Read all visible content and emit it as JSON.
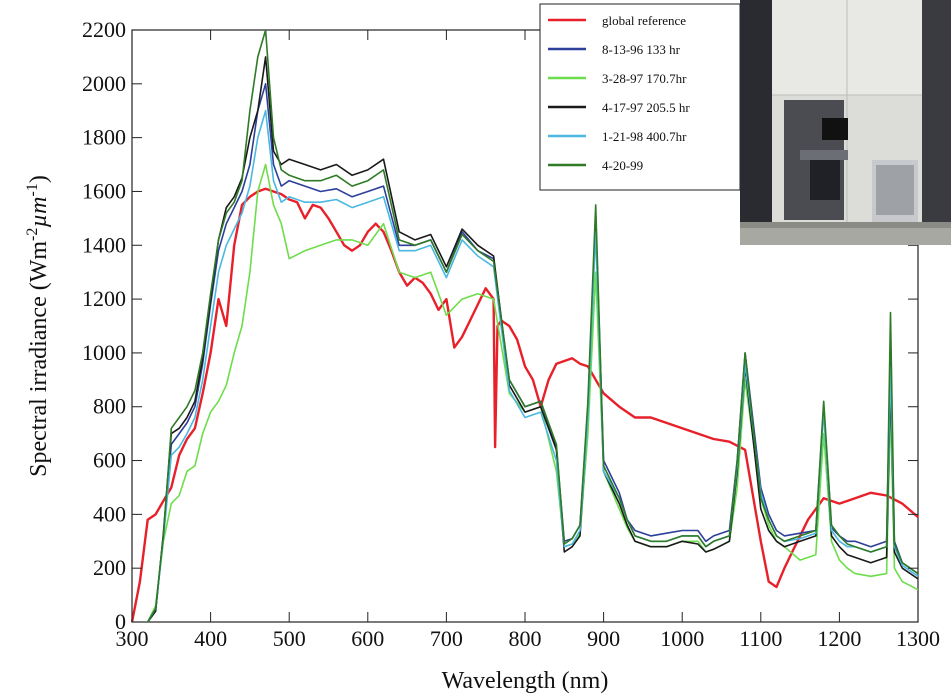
{
  "chart_data": {
    "type": "line",
    "title": "",
    "xlabel": "Wavelength (nm)",
    "ylabel": "Spectral irradiance (Wm-2µm-1)",
    "ylabel_parts": {
      "base": "Spectral irradiance (Wm",
      "exp1": "-2",
      "mid": "µm",
      "exp2": "-1",
      "end": ")"
    },
    "xlim": [
      300,
      1300
    ],
    "ylim": [
      0,
      2200
    ],
    "x_ticks": [
      300,
      400,
      500,
      600,
      700,
      800,
      900,
      1000,
      1100,
      1200,
      1300
    ],
    "y_ticks": [
      0,
      200,
      400,
      600,
      800,
      1000,
      1200,
      1400,
      1600,
      1800,
      2000,
      2200
    ],
    "grid": false,
    "legend_position": "top-right",
    "series": [
      {
        "name": "global reference",
        "color": "#e8202a",
        "x": [
          300,
          310,
          320,
          330,
          340,
          350,
          360,
          370,
          380,
          390,
          400,
          410,
          420,
          430,
          440,
          450,
          460,
          470,
          480,
          490,
          500,
          510,
          520,
          530,
          540,
          550,
          560,
          570,
          580,
          590,
          600,
          610,
          620,
          630,
          640,
          650,
          660,
          670,
          680,
          690,
          700,
          710,
          720,
          730,
          740,
          750,
          760,
          762,
          765,
          770,
          780,
          790,
          800,
          810,
          820,
          830,
          840,
          850,
          860,
          870,
          880,
          890,
          900,
          920,
          940,
          960,
          980,
          1000,
          1020,
          1040,
          1060,
          1080,
          1100,
          1110,
          1120,
          1130,
          1140,
          1160,
          1180,
          1200,
          1220,
          1240,
          1260,
          1280,
          1300
        ],
        "y": [
          0,
          150,
          380,
          400,
          450,
          500,
          620,
          680,
          720,
          850,
          1000,
          1200,
          1100,
          1400,
          1550,
          1580,
          1600,
          1610,
          1600,
          1590,
          1570,
          1560,
          1500,
          1550,
          1540,
          1500,
          1450,
          1400,
          1380,
          1400,
          1450,
          1480,
          1450,
          1380,
          1300,
          1250,
          1280,
          1260,
          1220,
          1160,
          1200,
          1020,
          1060,
          1120,
          1180,
          1240,
          1200,
          650,
          1100,
          1120,
          1100,
          1050,
          950,
          900,
          800,
          900,
          960,
          970,
          980,
          960,
          950,
          900,
          850,
          800,
          760,
          760,
          740,
          720,
          700,
          680,
          670,
          640,
          300,
          150,
          130,
          200,
          260,
          380,
          460,
          440,
          460,
          480,
          470,
          440,
          390
        ]
      },
      {
        "name": "8-13-96 133 hr",
        "color": "#2c3f9a",
        "x": [
          320,
          330,
          340,
          350,
          360,
          370,
          380,
          390,
          400,
          410,
          420,
          430,
          440,
          450,
          460,
          470,
          480,
          490,
          500,
          520,
          540,
          560,
          580,
          600,
          620,
          640,
          660,
          680,
          700,
          720,
          740,
          760,
          780,
          800,
          820,
          840,
          850,
          860,
          870,
          880,
          890,
          900,
          920,
          930,
          940,
          960,
          980,
          1000,
          1020,
          1030,
          1040,
          1060,
          1070,
          1080,
          1100,
          1110,
          1120,
          1130,
          1150,
          1170,
          1180,
          1190,
          1200,
          1210,
          1220,
          1240,
          1260,
          1265,
          1270,
          1280,
          1300
        ],
        "y": [
          0,
          40,
          320,
          660,
          700,
          740,
          800,
          960,
          1180,
          1380,
          1480,
          1540,
          1600,
          1700,
          1900,
          2000,
          1700,
          1620,
          1640,
          1620,
          1600,
          1610,
          1580,
          1600,
          1620,
          1400,
          1400,
          1420,
          1300,
          1450,
          1380,
          1350,
          900,
          800,
          820,
          650,
          300,
          310,
          360,
          800,
          1500,
          600,
          480,
          380,
          340,
          320,
          330,
          340,
          340,
          300,
          320,
          340,
          600,
          1000,
          500,
          400,
          340,
          320,
          330,
          340,
          800,
          350,
          320,
          300,
          300,
          280,
          300,
          1000,
          300,
          220,
          180
        ]
      },
      {
        "name": "3-28-97 170.7hr",
        "color": "#6ddd4c",
        "x": [
          320,
          330,
          340,
          350,
          360,
          370,
          380,
          390,
          400,
          410,
          420,
          430,
          440,
          450,
          460,
          470,
          480,
          490,
          500,
          520,
          540,
          560,
          580,
          600,
          620,
          640,
          660,
          680,
          700,
          720,
          740,
          760,
          780,
          800,
          820,
          840,
          850,
          860,
          870,
          880,
          890,
          900,
          920,
          930,
          940,
          960,
          980,
          1000,
          1020,
          1030,
          1040,
          1060,
          1070,
          1080,
          1100,
          1110,
          1120,
          1130,
          1150,
          1170,
          1180,
          1190,
          1200,
          1210,
          1220,
          1240,
          1260,
          1265,
          1270,
          1280,
          1300
        ],
        "y": [
          0,
          60,
          300,
          440,
          470,
          560,
          580,
          700,
          780,
          820,
          880,
          1000,
          1100,
          1300,
          1600,
          1700,
          1550,
          1480,
          1350,
          1380,
          1400,
          1420,
          1420,
          1400,
          1480,
          1300,
          1280,
          1300,
          1140,
          1200,
          1220,
          1200,
          850,
          780,
          800,
          560,
          280,
          290,
          330,
          700,
          1300,
          560,
          420,
          350,
          300,
          280,
          280,
          300,
          300,
          260,
          270,
          300,
          500,
          900,
          460,
          360,
          300,
          280,
          230,
          250,
          700,
          300,
          230,
          200,
          180,
          170,
          180,
          800,
          200,
          150,
          120
        ]
      },
      {
        "name": "4-17-97 205.5 hr",
        "color": "#1a1a1a",
        "x": [
          320,
          330,
          340,
          350,
          360,
          370,
          380,
          390,
          400,
          410,
          420,
          430,
          440,
          450,
          460,
          470,
          480,
          490,
          500,
          520,
          540,
          560,
          580,
          600,
          620,
          640,
          660,
          680,
          700,
          720,
          740,
          760,
          780,
          800,
          820,
          840,
          850,
          860,
          870,
          880,
          890,
          900,
          920,
          930,
          940,
          960,
          980,
          1000,
          1020,
          1030,
          1040,
          1060,
          1070,
          1080,
          1100,
          1110,
          1120,
          1130,
          1150,
          1170,
          1180,
          1190,
          1200,
          1210,
          1220,
          1240,
          1260,
          1265,
          1270,
          1280,
          1300
        ],
        "y": [
          0,
          40,
          330,
          700,
          720,
          760,
          820,
          980,
          1200,
          1420,
          1540,
          1580,
          1650,
          1800,
          1900,
          2100,
          1750,
          1700,
          1720,
          1700,
          1680,
          1700,
          1660,
          1680,
          1720,
          1450,
          1420,
          1440,
          1320,
          1460,
          1400,
          1360,
          880,
          780,
          800,
          640,
          260,
          280,
          320,
          780,
          1500,
          560,
          440,
          360,
          300,
          280,
          280,
          300,
          290,
          260,
          270,
          300,
          560,
          950,
          420,
          340,
          300,
          280,
          300,
          320,
          800,
          320,
          280,
          250,
          240,
          220,
          240,
          900,
          260,
          200,
          160
        ]
      },
      {
        "name": "1-21-98 400.7hr",
        "color": "#4ab8e0",
        "x": [
          320,
          330,
          340,
          350,
          360,
          370,
          380,
          390,
          400,
          410,
          420,
          430,
          440,
          450,
          460,
          470,
          480,
          490,
          500,
          520,
          540,
          560,
          580,
          600,
          620,
          640,
          660,
          680,
          700,
          720,
          740,
          760,
          780,
          800,
          820,
          840,
          850,
          860,
          870,
          880,
          890,
          900,
          920,
          930,
          940,
          960,
          980,
          1000,
          1020,
          1030,
          1040,
          1060,
          1070,
          1080,
          1100,
          1110,
          1120,
          1130,
          1150,
          1170,
          1180,
          1190,
          1200,
          1210,
          1220,
          1240,
          1260,
          1265,
          1270,
          1280,
          1300
        ],
        "y": [
          0,
          50,
          310,
          620,
          650,
          700,
          760,
          900,
          1100,
          1300,
          1400,
          1460,
          1520,
          1620,
          1800,
          1900,
          1640,
          1560,
          1580,
          1560,
          1560,
          1570,
          1540,
          1560,
          1580,
          1380,
          1380,
          1400,
          1280,
          1420,
          1360,
          1320,
          860,
          760,
          780,
          600,
          280,
          290,
          340,
          760,
          1450,
          560,
          460,
          380,
          320,
          300,
          300,
          320,
          320,
          280,
          300,
          320,
          580,
          960,
          480,
          380,
          320,
          300,
          310,
          330,
          780,
          340,
          300,
          280,
          280,
          260,
          280,
          950,
          280,
          210,
          170
        ]
      },
      {
        "name": "4-20-99",
        "color": "#2e7a26",
        "x": [
          320,
          330,
          340,
          350,
          360,
          370,
          380,
          390,
          400,
          410,
          420,
          430,
          440,
          450,
          460,
          470,
          480,
          490,
          500,
          520,
          540,
          560,
          580,
          600,
          620,
          640,
          660,
          680,
          700,
          720,
          740,
          760,
          780,
          800,
          820,
          840,
          850,
          860,
          870,
          880,
          890,
          900,
          920,
          930,
          940,
          960,
          980,
          1000,
          1020,
          1030,
          1040,
          1060,
          1070,
          1080,
          1100,
          1110,
          1120,
          1130,
          1150,
          1170,
          1180,
          1190,
          1200,
          1210,
          1220,
          1240,
          1260,
          1265,
          1270,
          1280,
          1300
        ],
        "y": [
          0,
          50,
          320,
          720,
          760,
          800,
          860,
          1000,
          1220,
          1420,
          1520,
          1560,
          1640,
          1900,
          2100,
          2200,
          1800,
          1680,
          1660,
          1640,
          1640,
          1660,
          1620,
          1640,
          1680,
          1420,
          1400,
          1420,
          1300,
          1440,
          1380,
          1340,
          900,
          800,
          820,
          660,
          290,
          310,
          360,
          820,
          1550,
          580,
          460,
          380,
          320,
          300,
          300,
          320,
          320,
          280,
          300,
          320,
          600,
          1000,
          460,
          380,
          320,
          300,
          320,
          340,
          820,
          360,
          320,
          290,
          280,
          260,
          280,
          1150,
          290,
          220,
          180
        ]
      }
    ]
  }
}
